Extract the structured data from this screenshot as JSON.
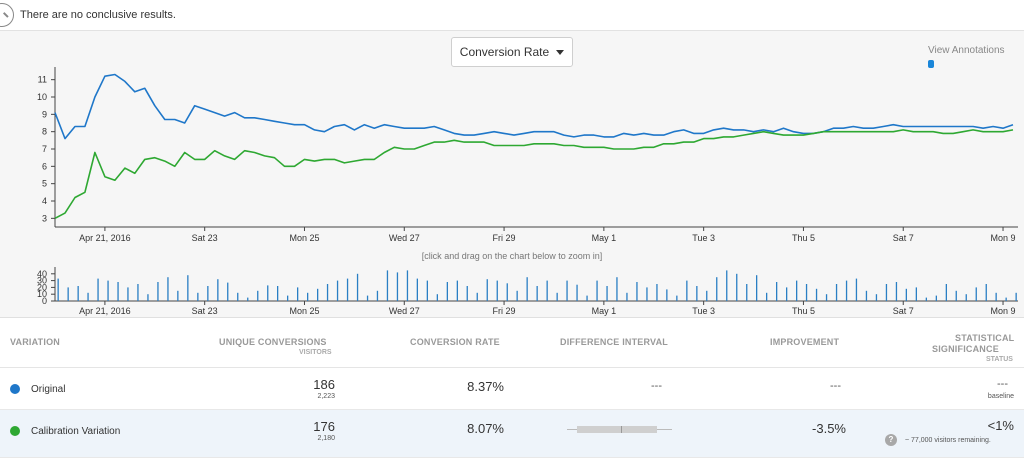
{
  "notice": {
    "icon": "magnifier-icon",
    "text": "There are no conclusive results."
  },
  "controls": {
    "metric_label": "Conversion Rate",
    "view_annotations": "View Annotations"
  },
  "colors": {
    "original": "#1f77c9",
    "variation": "#2ea832",
    "bars": "#2a7fc4",
    "annotation": "#1a86d9"
  },
  "chart_data": [
    {
      "type": "line",
      "ylim": [
        2.5,
        11.5
      ],
      "yticks": [
        3,
        4,
        5,
        6,
        7,
        8,
        9,
        10,
        11
      ],
      "x_tick_labels": [
        "Apr 21, 2016",
        "Sat 23",
        "Mon 25",
        "Wed 27",
        "Fri 29",
        "May 1",
        "Tue 3",
        "Thu 5",
        "Sat 7",
        "Mon 9"
      ],
      "x_tick_days": [
        1,
        3,
        5,
        7,
        9,
        11,
        13,
        15,
        17,
        19
      ],
      "x_range_days": [
        0,
        19.3
      ],
      "series": [
        {
          "name": "Original",
          "x": [
            0,
            0.2,
            0.4,
            0.6,
            0.8,
            1.0,
            1.2,
            1.4,
            1.6,
            1.8,
            2.0,
            2.2,
            2.4,
            2.6,
            2.8,
            3.0,
            3.2,
            3.4,
            3.6,
            3.8,
            4.0,
            4.2,
            4.4,
            4.6,
            4.8,
            5.0,
            5.2,
            5.4,
            5.6,
            5.8,
            6.0,
            6.2,
            6.4,
            6.6,
            6.8,
            7.0,
            7.2,
            7.4,
            7.6,
            7.8,
            8.0,
            8.2,
            8.4,
            8.6,
            8.8,
            9.0,
            9.2,
            9.4,
            9.6,
            9.8,
            10.0,
            10.2,
            10.4,
            10.6,
            10.8,
            11.0,
            11.2,
            11.4,
            11.6,
            11.8,
            12.0,
            12.2,
            12.4,
            12.6,
            12.8,
            13.0,
            13.2,
            13.4,
            13.6,
            13.8,
            14.0,
            14.2,
            14.4,
            14.6,
            14.8,
            15.0,
            15.2,
            15.4,
            15.6,
            15.8,
            16.0,
            16.2,
            16.4,
            16.6,
            16.8,
            17.0,
            17.2,
            17.4,
            17.6,
            17.8,
            18.0,
            18.2,
            18.4,
            18.6,
            18.8,
            19.0,
            19.2
          ],
          "values": [
            9.1,
            7.6,
            8.3,
            8.3,
            10.0,
            11.2,
            11.3,
            10.9,
            10.3,
            10.5,
            9.5,
            8.7,
            8.7,
            8.5,
            9.5,
            9.3,
            9.1,
            8.9,
            9.1,
            8.8,
            8.8,
            8.7,
            8.6,
            8.5,
            8.4,
            8.4,
            8.1,
            8.0,
            8.3,
            8.4,
            8.1,
            8.4,
            8.2,
            8.4,
            8.3,
            8.2,
            8.2,
            8.2,
            8.3,
            8.1,
            7.9,
            7.8,
            7.8,
            7.9,
            8.0,
            7.9,
            7.8,
            7.9,
            8.0,
            8.0,
            8.0,
            7.8,
            7.7,
            7.8,
            7.8,
            7.7,
            7.7,
            7.9,
            7.8,
            7.9,
            7.8,
            7.8,
            8.0,
            8.1,
            7.9,
            7.9,
            8.1,
            8.2,
            8.1,
            8.1,
            8.0,
            8.1,
            8.0,
            8.2,
            8.0,
            7.9,
            7.9,
            8.0,
            8.2,
            8.2,
            8.3,
            8.2,
            8.2,
            8.3,
            8.4,
            8.3,
            8.3,
            8.3,
            8.3,
            8.3,
            8.3,
            8.3,
            8.3,
            8.2,
            8.3,
            8.2,
            8.4
          ]
        },
        {
          "name": "Calibration Variation",
          "x": [
            0,
            0.2,
            0.4,
            0.6,
            0.8,
            1.0,
            1.2,
            1.4,
            1.6,
            1.8,
            2.0,
            2.2,
            2.4,
            2.6,
            2.8,
            3.0,
            3.2,
            3.4,
            3.6,
            3.8,
            4.0,
            4.2,
            4.4,
            4.6,
            4.8,
            5.0,
            5.2,
            5.4,
            5.6,
            5.8,
            6.0,
            6.2,
            6.4,
            6.6,
            6.8,
            7.0,
            7.2,
            7.4,
            7.6,
            7.8,
            8.0,
            8.2,
            8.4,
            8.6,
            8.8,
            9.0,
            9.2,
            9.4,
            9.6,
            9.8,
            10.0,
            10.2,
            10.4,
            10.6,
            10.8,
            11.0,
            11.2,
            11.4,
            11.6,
            11.8,
            12.0,
            12.2,
            12.4,
            12.6,
            12.8,
            13.0,
            13.2,
            13.4,
            13.6,
            13.8,
            14.0,
            14.2,
            14.4,
            14.6,
            14.8,
            15.0,
            15.2,
            15.4,
            15.6,
            15.8,
            16.0,
            16.2,
            16.4,
            16.6,
            16.8,
            17.0,
            17.2,
            17.4,
            17.6,
            17.8,
            18.0,
            18.2,
            18.4,
            18.6,
            18.8,
            19.0,
            19.2
          ],
          "values": [
            3.0,
            3.3,
            4.2,
            4.5,
            6.8,
            5.4,
            5.2,
            5.9,
            5.6,
            6.4,
            6.5,
            6.3,
            6.0,
            6.8,
            6.4,
            6.4,
            6.9,
            6.6,
            6.4,
            6.9,
            6.8,
            6.6,
            6.5,
            6.0,
            6.0,
            6.4,
            6.3,
            6.4,
            6.4,
            6.2,
            6.3,
            6.4,
            6.4,
            6.8,
            7.1,
            7.0,
            7.0,
            7.2,
            7.4,
            7.4,
            7.5,
            7.4,
            7.4,
            7.4,
            7.2,
            7.2,
            7.2,
            7.2,
            7.3,
            7.3,
            7.3,
            7.2,
            7.2,
            7.1,
            7.1,
            7.1,
            7.0,
            7.0,
            7.0,
            7.1,
            7.1,
            7.3,
            7.3,
            7.4,
            7.4,
            7.6,
            7.6,
            7.7,
            7.7,
            7.8,
            7.9,
            8.0,
            7.9,
            7.8,
            7.8,
            7.8,
            7.9,
            8.0,
            8.0,
            8.0,
            8.0,
            8.0,
            8.0,
            8.0,
            8.0,
            8.1,
            8.0,
            8.0,
            8.0,
            7.9,
            7.9,
            8.0,
            8.1,
            8.0,
            8.0,
            8.0,
            8.1
          ]
        }
      ]
    },
    {
      "type": "bar",
      "ylim": [
        0,
        50
      ],
      "yticks": [
        0,
        10,
        20,
        30,
        40
      ],
      "x_tick_labels": [
        "Apr 21, 2016",
        "Sat 23",
        "Mon 25",
        "Wed 27",
        "Fri 29",
        "May 1",
        "Tue 3",
        "Thu 5",
        "Sat 7",
        "Mon 9"
      ],
      "x_tick_days": [
        1,
        3,
        5,
        7,
        9,
        11,
        13,
        15,
        17,
        19
      ],
      "x_range_days": [
        0,
        19.3
      ],
      "x": [
        0.05,
        0.25,
        0.45,
        0.65,
        0.85,
        1.05,
        1.25,
        1.45,
        1.65,
        1.85,
        2.05,
        2.25,
        2.45,
        2.65,
        2.85,
        3.05,
        3.25,
        3.45,
        3.65,
        3.85,
        4.05,
        4.25,
        4.45,
        4.65,
        4.85,
        5.05,
        5.25,
        5.45,
        5.65,
        5.85,
        6.05,
        6.25,
        6.45,
        6.65,
        6.85,
        7.05,
        7.25,
        7.45,
        7.65,
        7.85,
        8.05,
        8.25,
        8.45,
        8.65,
        8.85,
        9.05,
        9.25,
        9.45,
        9.65,
        9.85,
        10.05,
        10.25,
        10.45,
        10.65,
        10.85,
        11.05,
        11.25,
        11.45,
        11.65,
        11.85,
        12.05,
        12.25,
        12.45,
        12.65,
        12.85,
        13.05,
        13.25,
        13.45,
        13.65,
        13.85,
        14.05,
        14.25,
        14.45,
        14.65,
        14.85,
        15.05,
        15.25,
        15.45,
        15.65,
        15.85,
        16.05,
        16.25,
        16.45,
        16.65,
        16.85,
        17.05,
        17.25,
        17.45,
        17.65,
        17.85,
        18.05,
        18.25,
        18.45,
        18.65,
        18.85,
        19.05,
        19.25
      ],
      "values": [
        33,
        20,
        22,
        12,
        33,
        30,
        28,
        20,
        25,
        10,
        28,
        35,
        15,
        38,
        12,
        22,
        32,
        27,
        12,
        5,
        15,
        23,
        22,
        8,
        20,
        12,
        18,
        25,
        30,
        33,
        40,
        8,
        15,
        45,
        42,
        45,
        33,
        30,
        10,
        28,
        30,
        22,
        12,
        32,
        30,
        26,
        15,
        35,
        22,
        30,
        12,
        30,
        24,
        8,
        30,
        22,
        35,
        12,
        28,
        20,
        25,
        17,
        8,
        30,
        22,
        15,
        35,
        45,
        40,
        25,
        38,
        12,
        28,
        20,
        30,
        25,
        18,
        10,
        25,
        30,
        33,
        15,
        10,
        25,
        28,
        18,
        20,
        5,
        8,
        25,
        15,
        10,
        20,
        25,
        12,
        5,
        12
      ]
    }
  ],
  "chart_hint": "[click and drag on the chart below to zoom in]",
  "table": {
    "headers": {
      "variation": "VARIATION",
      "unique_conversions": "UNIQUE CONVERSIONS",
      "unique_conversions_sub": "VISITORS",
      "conversion_rate": "CONVERSION RATE",
      "difference_interval": "DIFFERENCE INTERVAL",
      "improvement": "IMPROVEMENT",
      "significance_1": "STATISTICAL",
      "significance_2": "SIGNIFICANCE",
      "significance_sub": "STATUS"
    },
    "rows": [
      {
        "name": "Original",
        "conversions": "186",
        "visitors": "2,223",
        "rate": "8.37%",
        "interval": "---",
        "improvement": "---",
        "significance": "---",
        "status": "baseline"
      },
      {
        "name": "Calibration Variation",
        "conversions": "176",
        "visitors": "2,180",
        "rate": "8.07%",
        "improvement": "-3.5%",
        "significance": "<1%",
        "help": "?",
        "status": "~ 77,000 visitors remaining."
      }
    ]
  }
}
